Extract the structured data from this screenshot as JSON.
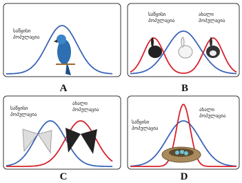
{
  "panels": [
    {
      "letter": "A",
      "labels": [
        [
          "საწყისი",
          "პოპულაცია"
        ]
      ]
    },
    {
      "letter": "B",
      "labels": [
        [
          "საწყისი",
          "პოპულაცია"
        ],
        [
          "ახალი",
          "პოპულაცია"
        ]
      ]
    },
    {
      "letter": "C",
      "labels": [
        [
          "საწყისი",
          "პოპულაცია"
        ],
        [
          "ახალი",
          "პოპულაცია"
        ]
      ]
    },
    {
      "letter": "D",
      "labels": [
        [
          "საწყისი",
          "პოპულაცია"
        ],
        [
          "ახალი",
          "პოპულაცია"
        ]
      ]
    }
  ]
}
